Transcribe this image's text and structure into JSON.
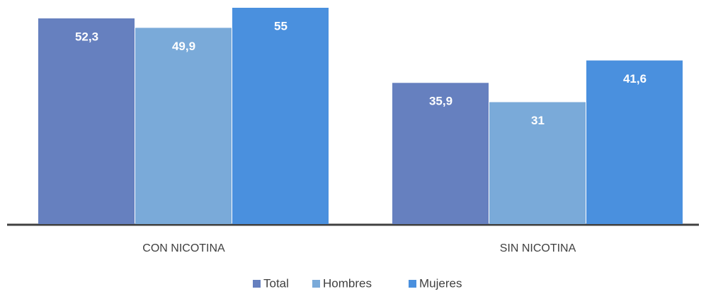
{
  "chart_data": {
    "type": "bar",
    "categories": [
      "CON NICOTINA",
      "SIN NICOTINA"
    ],
    "series": [
      {
        "name": "Total",
        "color": "#6680bf",
        "values": [
          52.3,
          35.9
        ],
        "value_labels": [
          "52,3",
          "35,9"
        ]
      },
      {
        "name": "Hombres",
        "color": "#7aaad9",
        "values": [
          49.9,
          31
        ],
        "value_labels": [
          "49,9",
          "31"
        ]
      },
      {
        "name": "Mujeres",
        "color": "#4a90de",
        "values": [
          55,
          41.6
        ],
        "value_labels": [
          "55",
          "41,6"
        ]
      }
    ],
    "legend": "bottom"
  }
}
